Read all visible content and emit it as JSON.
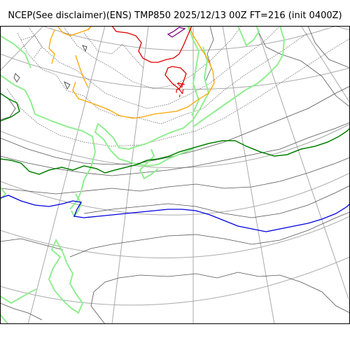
{
  "title": "NCEP(See disclaimer)(ENS) TMP850 2025/12/13 00Z FT=216 (init 0400Z)",
  "colors": {
    "graticule": "#a9a9a9",
    "coastline": "#555555",
    "isotherm_thin": "#666666",
    "land": "#90ee90",
    "temp_minus24": "#dd0000",
    "temp_orange": "#ffa500",
    "temp_green": "#008000",
    "temp_blue": "#0000dd",
    "temp_purple": "#800080"
  },
  "labels": {
    "minus24": "-24"
  }
}
